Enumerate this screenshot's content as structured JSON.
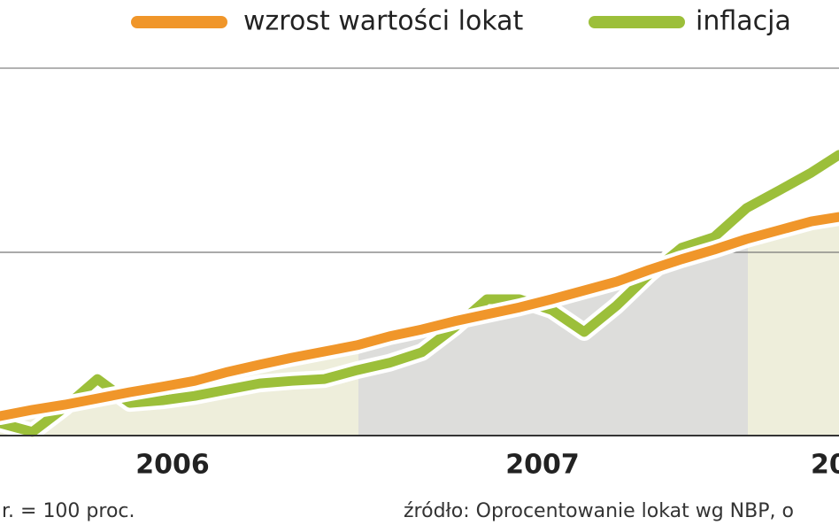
{
  "chart_data": {
    "type": "line",
    "legend": "top",
    "series": [
      {
        "name": "wzrost wartości lokat",
        "color": "#f0962a",
        "values": [
          5.3,
          7.0,
          8.4,
          10.1,
          11.8,
          13.3,
          14.9,
          17.3,
          19.3,
          21.2,
          22.9,
          24.6,
          27.0,
          28.9,
          31.1,
          33.0,
          34.9,
          37.1,
          39.5,
          41.9,
          45.1,
          48.0,
          50.6,
          53.5,
          55.9,
          58.3,
          59.5
        ]
      },
      {
        "name": "inflacja",
        "color": "#9cbf3a",
        "values": [
          3.4,
          1.0,
          7.7,
          15.4,
          8.9,
          9.6,
          10.8,
          12.5,
          14.2,
          14.9,
          15.4,
          17.8,
          19.8,
          22.7,
          29.4,
          37.1,
          37.1,
          34.2,
          28.2,
          35.4,
          43.9,
          51.1,
          54.0,
          61.9,
          66.7,
          71.6,
          76.4
        ]
      }
    ],
    "x": [
      1,
      2,
      3,
      4,
      5,
      6,
      7,
      8,
      9,
      10,
      11,
      12,
      13,
      14,
      15,
      16,
      17,
      18,
      19,
      20,
      21,
      22,
      23,
      24,
      25,
      26,
      26.85
    ],
    "xlim": [
      1,
      26.85
    ],
    "ylim": [
      0,
      100
    ],
    "categories": [
      "2006",
      "2007",
      "20"
    ],
    "note": "r. = 100 proc.",
    "source": "źródło: Oprocentowanie lokat wg NBP, o"
  }
}
